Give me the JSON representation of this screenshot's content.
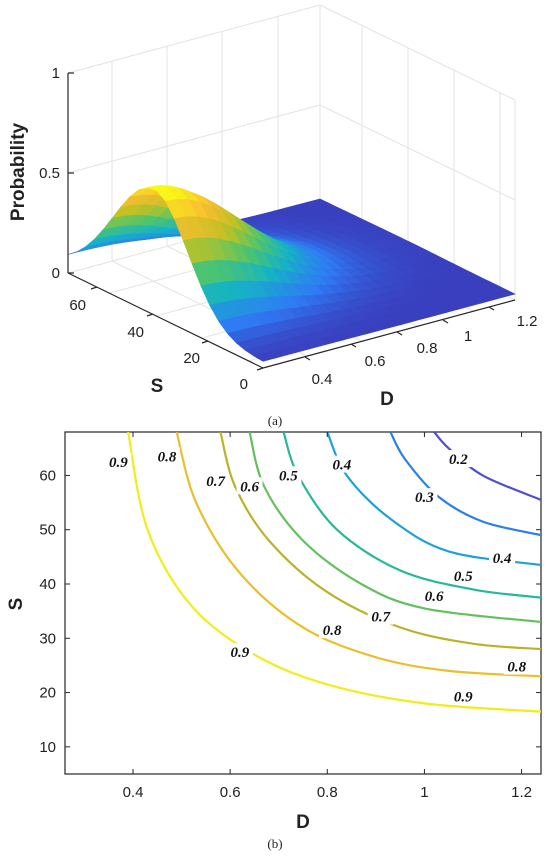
{
  "chart_data": [
    {
      "type": "surface",
      "panel_label": "(a)",
      "xlabel": "D",
      "ylabel": "S",
      "zlabel": "Probability",
      "xlim": [
        0.3,
        1.25
      ],
      "ylim": [
        0,
        68
      ],
      "zlim": [
        0,
        1
      ],
      "x_ticks": [
        "0.4",
        "0.6",
        "0.8",
        "1",
        "1.2"
      ],
      "y_ticks": [
        "0",
        "20",
        "40",
        "60"
      ],
      "z_ticks": [
        "0",
        "0.5",
        "1"
      ],
      "peak": {
        "x": 0.3,
        "y": 0,
        "z": 0.6
      },
      "colormap": [
        "#3e26a8",
        "#2f7bf5",
        "#14b3c5",
        "#52c569",
        "#c1c123",
        "#f9bd31",
        "#f9fb15"
      ],
      "grid": true
    },
    {
      "type": "contour",
      "panel_label": "(b)",
      "xlabel": "D",
      "ylabel": "S",
      "xlim": [
        0.26,
        1.24
      ],
      "ylim": [
        5,
        68
      ],
      "x_ticks": [
        "0.4",
        "0.6",
        "0.8",
        "1",
        "1.2"
      ],
      "y_ticks": [
        "10",
        "20",
        "30",
        "40",
        "50",
        "60"
      ],
      "levels": [
        {
          "value": 0.9,
          "label": "0.9",
          "color": "#f2ec1a"
        },
        {
          "value": 0.8,
          "label": "0.8",
          "color": "#e9bf2b"
        },
        {
          "value": 0.7,
          "label": "0.7",
          "color": "#bcb22a"
        },
        {
          "value": 0.6,
          "label": "0.6",
          "color": "#63c05d"
        },
        {
          "value": 0.5,
          "label": "0.5",
          "color": "#27b79b"
        },
        {
          "value": 0.4,
          "label": "0.4",
          "color": "#1ea2d4"
        },
        {
          "value": 0.3,
          "label": "0.3",
          "color": "#2b80e6"
        },
        {
          "value": 0.2,
          "label": "0.2",
          "color": "#4e4dd4"
        }
      ],
      "curves": [
        {
          "label": "0.9",
          "label_point": [
            0.37,
            62.5
          ],
          "points": [
            [
              0.39,
              68
            ],
            [
              0.43,
              50
            ],
            [
              0.52,
              36
            ],
            [
              0.65,
              27
            ],
            [
              0.8,
              21.5
            ],
            [
              1.0,
              18
            ],
            [
              1.24,
              16.5
            ]
          ]
        },
        {
          "label": "0.9",
          "label_point": [
            0.62,
            27.5
          ],
          "points": []
        },
        {
          "label": "0.9",
          "label_point": [
            1.08,
            19.3
          ],
          "points": []
        },
        {
          "label": "0.8",
          "label_point": [
            0.47,
            63.5
          ],
          "points": [
            [
              0.49,
              68
            ],
            [
              0.53,
              55
            ],
            [
              0.62,
              42
            ],
            [
              0.75,
              32
            ],
            [
              0.9,
              26.5
            ],
            [
              1.05,
              24
            ],
            [
              1.24,
              23
            ]
          ]
        },
        {
          "label": "0.8",
          "label_point": [
            0.81,
            31.5
          ],
          "points": []
        },
        {
          "label": "0.8",
          "label_point": [
            1.19,
            24.8
          ],
          "points": []
        },
        {
          "label": "0.7",
          "label_point": [
            0.57,
            59
          ],
          "points": [
            [
              0.58,
              68
            ],
            [
              0.61,
              58
            ],
            [
              0.68,
              48
            ],
            [
              0.8,
              38.5
            ],
            [
              0.95,
              32
            ],
            [
              1.1,
              29
            ],
            [
              1.24,
              28
            ]
          ]
        },
        {
          "label": "0.7",
          "label_point": [
            0.91,
            34
          ],
          "points": []
        },
        {
          "label": "0.6",
          "label_point": [
            0.64,
            58
          ],
          "points": [
            [
              0.64,
              68
            ],
            [
              0.67,
              58
            ],
            [
              0.75,
              48
            ],
            [
              0.87,
              40
            ],
            [
              1.0,
              35.5
            ],
            [
              1.24,
              33
            ]
          ]
        },
        {
          "label": "0.6",
          "label_point": [
            1.02,
            37.8
          ],
          "points": []
        },
        {
          "label": "0.5",
          "label_point": [
            0.72,
            60
          ],
          "points": [
            [
              0.71,
              68
            ],
            [
              0.74,
              60
            ],
            [
              0.82,
              50
            ],
            [
              0.95,
              42.5
            ],
            [
              1.1,
              39
            ],
            [
              1.24,
              37.5
            ]
          ]
        },
        {
          "label": "0.5",
          "label_point": [
            1.08,
            41.5
          ],
          "points": []
        },
        {
          "label": "0.4",
          "label_point": [
            0.83,
            62
          ],
          "points": [
            [
              0.8,
              68
            ],
            [
              0.84,
              60
            ],
            [
              0.93,
              52
            ],
            [
              1.05,
              46
            ],
            [
              1.24,
              43.5
            ]
          ]
        },
        {
          "label": "0.4",
          "label_point": [
            1.16,
            44.8
          ],
          "points": []
        },
        {
          "label": "0.3",
          "label_point": [
            1.0,
            56
          ],
          "points": [
            [
              0.93,
              68
            ],
            [
              0.96,
              63
            ],
            [
              1.03,
              56
            ],
            [
              1.12,
              51.5
            ],
            [
              1.24,
              49
            ]
          ]
        },
        {
          "label": "0.2",
          "label_point": [
            1.07,
            63
          ],
          "points": [
            [
              1.02,
              68
            ],
            [
              1.05,
              65
            ],
            [
              1.12,
              60
            ],
            [
              1.24,
              55.5
            ]
          ]
        }
      ],
      "grid": false
    }
  ]
}
